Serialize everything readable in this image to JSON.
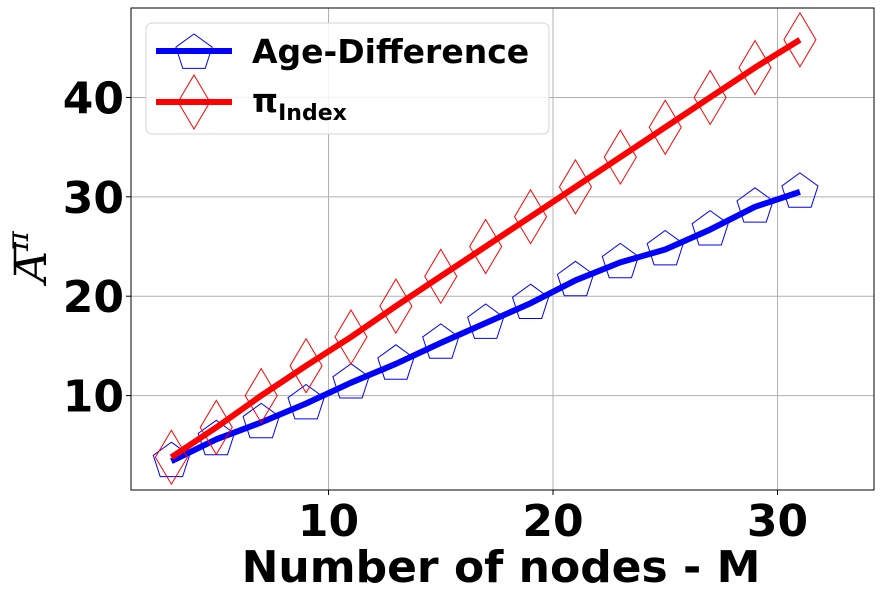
{
  "chart_data": {
    "type": "line",
    "title": "",
    "xlabel": "Number of nodes - M",
    "ylabel": {
      "base": "A",
      "superscript": "π"
    },
    "xlim": [
      1.2,
      34.3
    ],
    "ylim": [
      0.5,
      49.0
    ],
    "xticks": [
      10,
      20,
      30
    ],
    "yticks": [
      10,
      20,
      30,
      40
    ],
    "grid": true,
    "legend_position": "top-left",
    "series": [
      {
        "name": "Age-Difference",
        "color": "#0000ff",
        "marker": "pentagon",
        "x": [
          3,
          5,
          7,
          9,
          11,
          13,
          15,
          17,
          19,
          21,
          23,
          25,
          27,
          29,
          31
        ],
        "y": [
          3.4,
          5.6,
          7.3,
          9.2,
          11.3,
          13.2,
          15.3,
          17.3,
          19.3,
          21.6,
          23.4,
          24.7,
          26.7,
          29.0,
          30.5
        ]
      },
      {
        "name": "π",
        "subscript": "Index",
        "color": "#ff0000",
        "marker": "diamond",
        "x": [
          3,
          5,
          7,
          9,
          11,
          13,
          15,
          17,
          19,
          21,
          23,
          25,
          27,
          29,
          31
        ],
        "y": [
          3.8,
          6.8,
          10.0,
          13.0,
          15.9,
          19.0,
          22.0,
          25.0,
          28.0,
          31.0,
          34.0,
          37.0,
          40.0,
          43.0,
          45.8
        ]
      }
    ]
  }
}
